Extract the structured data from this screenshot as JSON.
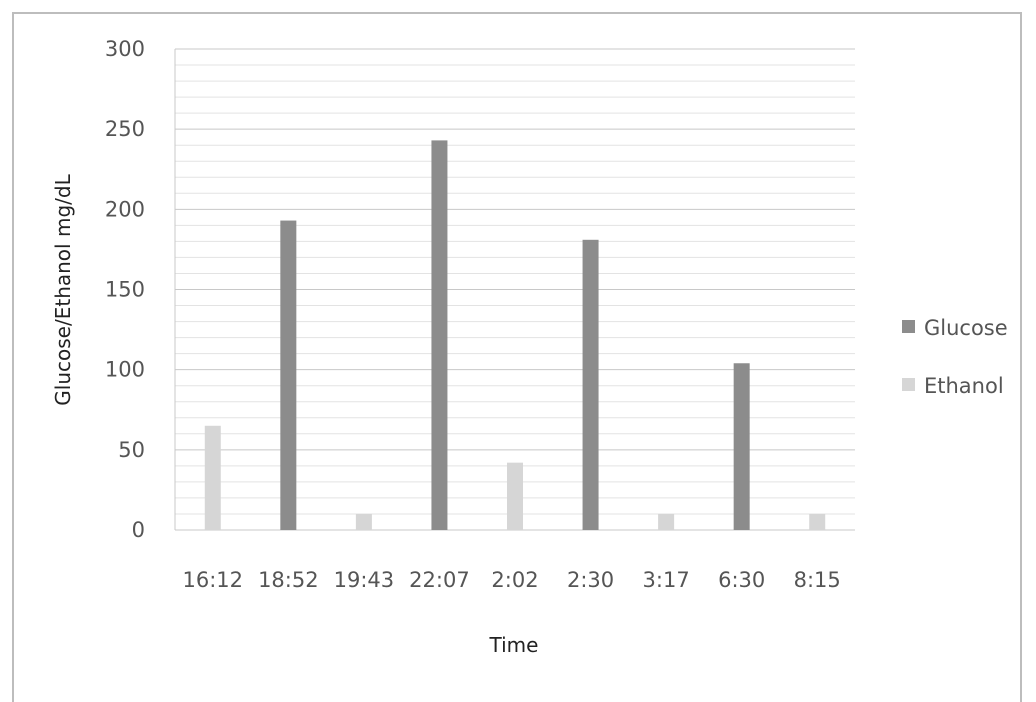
{
  "chart_data": {
    "type": "bar",
    "title": "",
    "xlabel": "Time",
    "ylabel": "Glucose/Ethanol mg/dL",
    "categories": [
      "16:12",
      "18:52",
      "19:43",
      "22:07",
      "2:02",
      "2:30",
      "3:17",
      "6:30",
      "8:15"
    ],
    "series": [
      {
        "name": "Glucose",
        "color": "#8c8c8c",
        "values": [
          null,
          193,
          null,
          243,
          null,
          181,
          null,
          104,
          null
        ]
      },
      {
        "name": "Ethanol",
        "color": "#d6d6d6",
        "values": [
          65,
          null,
          10,
          null,
          42,
          null,
          10,
          null,
          10
        ]
      }
    ],
    "ylim": [
      0,
      300
    ],
    "yticks": [
      0,
      50,
      100,
      150,
      200,
      250,
      300
    ],
    "minor_grid_step": 10,
    "grid": true,
    "legend_position": "right"
  }
}
